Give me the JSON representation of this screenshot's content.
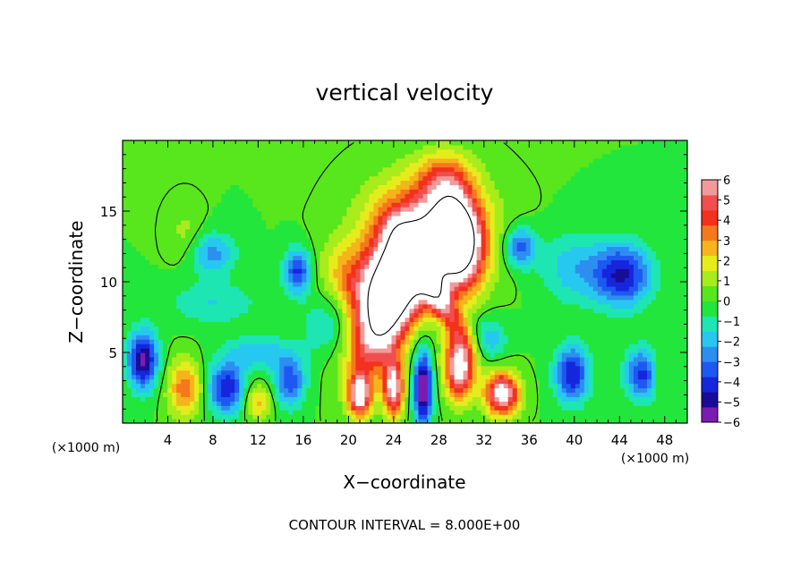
{
  "chart_data": {
    "type": "heatmap",
    "title": "vertical velocity",
    "xlabel": "X−coordinate",
    "ylabel": "Z−coordinate",
    "x_unit_label": "(×1000 m)",
    "y_unit_label": "(×1000 m)",
    "xlim": [
      0,
      50
    ],
    "ylim": [
      0,
      20
    ],
    "x_ticks": [
      4,
      8,
      12,
      16,
      20,
      24,
      28,
      32,
      36,
      40,
      44,
      48
    ],
    "x_tick_labels": [
      "4",
      "8",
      "12",
      "16",
      "20",
      "24",
      "28",
      "32",
      "36",
      "40",
      "44",
      "48"
    ],
    "y_ticks": [
      5,
      10,
      15
    ],
    "y_tick_labels": [
      "5",
      "10",
      "15"
    ],
    "footnote": "CONTOUR INTERVAL = 8.000E+00",
    "colorbar": {
      "min": -6,
      "max": 6,
      "labels": [
        "6",
        "5",
        "4",
        "3",
        "2",
        "1",
        "0",
        "−1",
        "−2",
        "−3",
        "−4",
        "−5",
        "−6"
      ],
      "background": "#00e21c",
      "colors": [
        "#7c1bb0",
        "#1a0c96",
        "#1626dc",
        "#1e58f2",
        "#2e8ef0",
        "#26c8f0",
        "#1ee6b2",
        "#22e63c",
        "#58e61c",
        "#a8ec1c",
        "#e6ec1c",
        "#f6b41c",
        "#f6781c",
        "#f2321c",
        "#f24e4e",
        "#f29a9a"
      ]
    },
    "features": [
      {
        "kind": "updraft",
        "x": 23.3,
        "z": 8.0,
        "w": 9.0,
        "sx": 2.4,
        "sz": 4.2,
        "tilt": -0.35
      },
      {
        "kind": "updraft",
        "x": 27.0,
        "z": 13.5,
        "w": 6.0,
        "sx": 5.0,
        "sz": 3.6,
        "tilt": 0
      },
      {
        "kind": "updraft",
        "x": 29.6,
        "z": 13.0,
        "w": 9.0,
        "sx": 2.0,
        "sz": 3.2,
        "tilt": 0.1
      },
      {
        "kind": "updraft",
        "x": 27.5,
        "z": 9.5,
        "w": 5.0,
        "sx": 1.3,
        "sz": 3.5,
        "tilt": 0.7
      },
      {
        "kind": "updraft",
        "x": 25.0,
        "z": 11.0,
        "w": 4.5,
        "sx": 3.0,
        "sz": 3.0,
        "tilt": 0
      },
      {
        "kind": "updraft",
        "x": 28.5,
        "z": 17.5,
        "w": 2.5,
        "sx": 2.5,
        "sz": 1.8,
        "tilt": 0
      },
      {
        "kind": "updraft",
        "x": 20.5,
        "z": 10.0,
        "w": 3.0,
        "sx": 2.5,
        "sz": 2.5,
        "tilt": 0.3
      },
      {
        "kind": "updraft",
        "x": 21.0,
        "z": 2.0,
        "w": 6.5,
        "sx": 1.0,
        "sz": 1.5,
        "tilt": 0
      },
      {
        "kind": "updraft",
        "x": 24.0,
        "z": 2.5,
        "w": 6.5,
        "sx": 0.9,
        "sz": 2.0,
        "tilt": 0
      },
      {
        "kind": "updraft",
        "x": 29.8,
        "z": 4.0,
        "w": 7.0,
        "sx": 1.3,
        "sz": 2.2,
        "tilt": 0
      },
      {
        "kind": "updraft",
        "x": 33.6,
        "z": 2.1,
        "w": 7.0,
        "sx": 1.5,
        "sz": 1.5,
        "tilt": 0
      },
      {
        "kind": "updraft",
        "x": 5.5,
        "z": 2.5,
        "w": 3.5,
        "sx": 1.5,
        "sz": 2.0,
        "tilt": 0
      },
      {
        "kind": "updraft",
        "x": 12.0,
        "z": 1.5,
        "w": 2.5,
        "sx": 1.2,
        "sz": 1.3,
        "tilt": 0
      },
      {
        "kind": "updraft",
        "x": 5.5,
        "z": 13.5,
        "w": 1.0,
        "sx": 1.5,
        "sz": 2.0,
        "tilt": 0
      },
      {
        "kind": "updraft",
        "x": 47.5,
        "z": 3.5,
        "w": 1.0,
        "sx": 0.8,
        "sz": 1.5,
        "tilt": 0
      },
      {
        "kind": "downdraft",
        "x": 26.6,
        "z": 2.5,
        "w": -6.5,
        "sx": 0.8,
        "sz": 2.5,
        "tilt": 0
      },
      {
        "kind": "downdraft",
        "x": 1.8,
        "z": 4.5,
        "w": -5.5,
        "sx": 1.3,
        "sz": 2.0,
        "tilt": 0
      },
      {
        "kind": "downdraft",
        "x": 9.2,
        "z": 2.5,
        "w": -4.5,
        "sx": 1.6,
        "sz": 1.8,
        "tilt": 0
      },
      {
        "kind": "downdraft",
        "x": 14.8,
        "z": 3.0,
        "w": -3.5,
        "sx": 1.4,
        "sz": 1.8,
        "tilt": 0
      },
      {
        "kind": "downdraft",
        "x": 15.5,
        "z": 10.8,
        "w": -4.0,
        "sx": 1.2,
        "sz": 1.6,
        "tilt": 0
      },
      {
        "kind": "downdraft",
        "x": 35.2,
        "z": 12.5,
        "w": -3.5,
        "sx": 1.4,
        "sz": 1.4,
        "tilt": 0
      },
      {
        "kind": "downdraft",
        "x": 44.3,
        "z": 10.5,
        "w": -4.5,
        "sx": 2.5,
        "sz": 2.2,
        "tilt": 0
      },
      {
        "kind": "downdraft",
        "x": 39.8,
        "z": 3.5,
        "w": -4.5,
        "sx": 1.5,
        "sz": 2.0,
        "tilt": 0
      },
      {
        "kind": "downdraft",
        "x": 46.0,
        "z": 3.5,
        "w": -4.0,
        "sx": 1.5,
        "sz": 1.8,
        "tilt": 0
      },
      {
        "kind": "downdraft",
        "x": 8.0,
        "z": 12.0,
        "w": -2.5,
        "sx": 2.0,
        "sz": 1.5,
        "tilt": 0
      },
      {
        "kind": "downdraft",
        "x": 32.5,
        "z": 6.0,
        "w": -2.0,
        "sx": 1.5,
        "sz": 1.5,
        "tilt": 0
      },
      {
        "kind": "downdraft",
        "x": 40.0,
        "z": 11.0,
        "w": -2.0,
        "sx": 3.0,
        "sz": 2.5,
        "tilt": 0
      },
      {
        "kind": "downdraft",
        "x": 12.0,
        "z": 5.0,
        "w": -2.0,
        "sx": 3.0,
        "sz": 1.2,
        "tilt": 0
      },
      {
        "kind": "downdraft",
        "x": 18.0,
        "z": 7.0,
        "w": -1.5,
        "sx": 2.0,
        "sz": 2.0,
        "tilt": 0
      },
      {
        "kind": "downdraft",
        "x": 8.0,
        "z": 8.5,
        "w": -1.5,
        "sx": 4.0,
        "sz": 1.5,
        "tilt": 0
      }
    ]
  }
}
